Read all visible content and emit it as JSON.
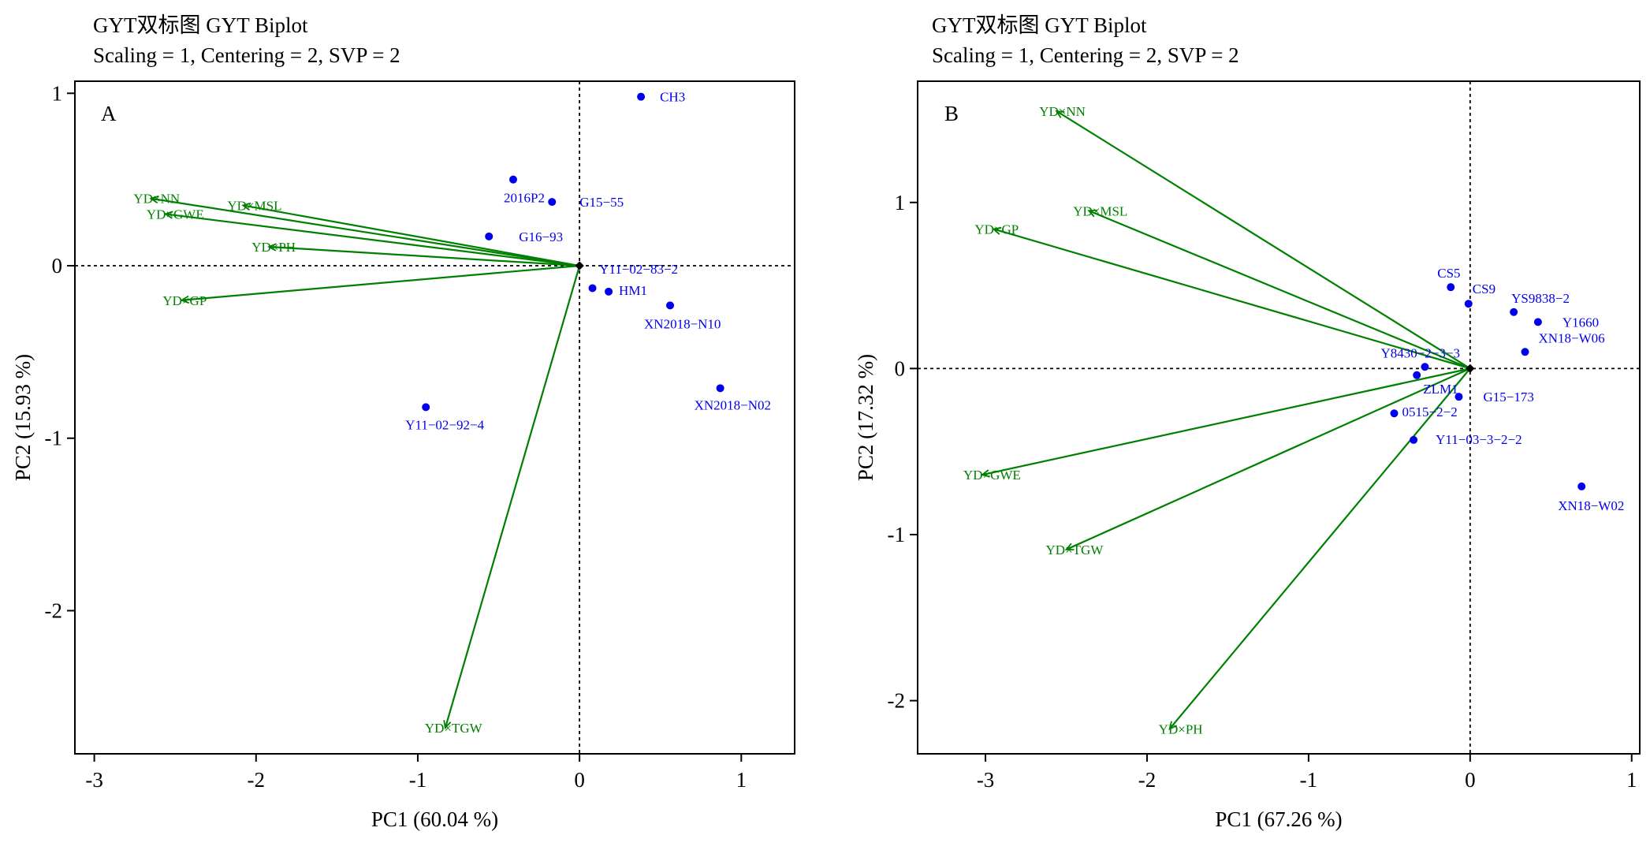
{
  "colors": {
    "genotype": "#0000ee",
    "trait": "#008000",
    "axis": "#000000"
  },
  "chart_data": [
    {
      "type": "scatter",
      "panel_label": "A",
      "title": "GYT双标图 GYT Biplot",
      "subtitle": "Scaling = 1, Centering = 2, SVP = 2",
      "xlabel": "PC1 (60.04 %)",
      "ylabel": "PC2 (15.93 %)",
      "xlim": [
        -3.12,
        1.33
      ],
      "ylim": [
        -2.83,
        1.07
      ],
      "xticks": [
        -3,
        -2,
        -1,
        0,
        1
      ],
      "yticks": [
        -2,
        -1,
        0,
        1
      ],
      "origin_lines": "dashed",
      "genotypes": [
        {
          "label": "CH3",
          "x": 0.38,
          "y": 0.98
        },
        {
          "label": "2016P2",
          "x": -0.41,
          "y": 0.5
        },
        {
          "label": "G15−55",
          "x": -0.17,
          "y": 0.37
        },
        {
          "label": "G16−93",
          "x": -0.56,
          "y": 0.17
        },
        {
          "label": "Y11−02−83−2",
          "x": 0.0,
          "y": 0.0
        },
        {
          "label": "HM1",
          "x": 0.18,
          "y": -0.15
        },
        {
          "label": "",
          "x": 0.08,
          "y": -0.13
        },
        {
          "label": "XN2018−N10",
          "x": 0.56,
          "y": -0.23
        },
        {
          "label": "XN2018−N02",
          "x": 0.87,
          "y": -0.71
        },
        {
          "label": "Y11−02−92−4",
          "x": -0.95,
          "y": -0.82
        }
      ],
      "traits": [
        {
          "label": "YD×NN",
          "x": -2.65,
          "y": 0.39
        },
        {
          "label": "YD×MSL",
          "x": -2.08,
          "y": 0.35
        },
        {
          "label": "YD×GWE",
          "x": -2.56,
          "y": 0.3
        },
        {
          "label": "YD×PH",
          "x": -1.92,
          "y": 0.11
        },
        {
          "label": "YD×GP",
          "x": -2.46,
          "y": -0.2
        },
        {
          "label": "YD×TGW",
          "x": -0.83,
          "y": -2.68
        }
      ]
    },
    {
      "type": "scatter",
      "panel_label": "B",
      "title": "GYT双标图 GYT Biplot",
      "subtitle": "Scaling = 1, Centering = 2, SVP = 2",
      "xlabel": "PC1 (67.26 %)",
      "ylabel": "PC2 (17.32 %)",
      "xlim": [
        -3.42,
        1.05
      ],
      "ylim": [
        -2.32,
        1.73
      ],
      "xticks": [
        -3,
        -2,
        -1,
        0,
        1
      ],
      "yticks": [
        -2,
        -1,
        0,
        1
      ],
      "origin_lines": "dashed",
      "genotypes": [
        {
          "label": "CS5",
          "x": -0.12,
          "y": 0.49
        },
        {
          "label": "CS9",
          "x": -0.01,
          "y": 0.39
        },
        {
          "label": "YS9838−2",
          "x": 0.27,
          "y": 0.34
        },
        {
          "label": "Y1660",
          "x": 0.42,
          "y": 0.28
        },
        {
          "label": "XN18−W06",
          "x": 0.34,
          "y": 0.1
        },
        {
          "label": "Y8430−2−3−3",
          "x": -0.28,
          "y": 0.01
        },
        {
          "label": "ZLM1",
          "x": -0.33,
          "y": -0.04
        },
        {
          "label": "G15−173",
          "x": -0.07,
          "y": -0.17
        },
        {
          "label": "0515−2−2",
          "x": -0.47,
          "y": -0.27
        },
        {
          "label": "Y11−03−3−2−2",
          "x": -0.35,
          "y": -0.43
        },
        {
          "label": "XN18−W02",
          "x": 0.69,
          "y": -0.71
        }
      ],
      "traits": [
        {
          "label": "YD×NN",
          "x": -2.56,
          "y": 1.55
        },
        {
          "label": "YD×MSL",
          "x": -2.36,
          "y": 0.95
        },
        {
          "label": "YD×GP",
          "x": -2.95,
          "y": 0.84
        },
        {
          "label": "YD×GWE",
          "x": -3.02,
          "y": -0.64
        },
        {
          "label": "YD×TGW",
          "x": -2.5,
          "y": -1.09
        },
        {
          "label": "YD×PH",
          "x": -1.86,
          "y": -2.17
        }
      ]
    }
  ]
}
